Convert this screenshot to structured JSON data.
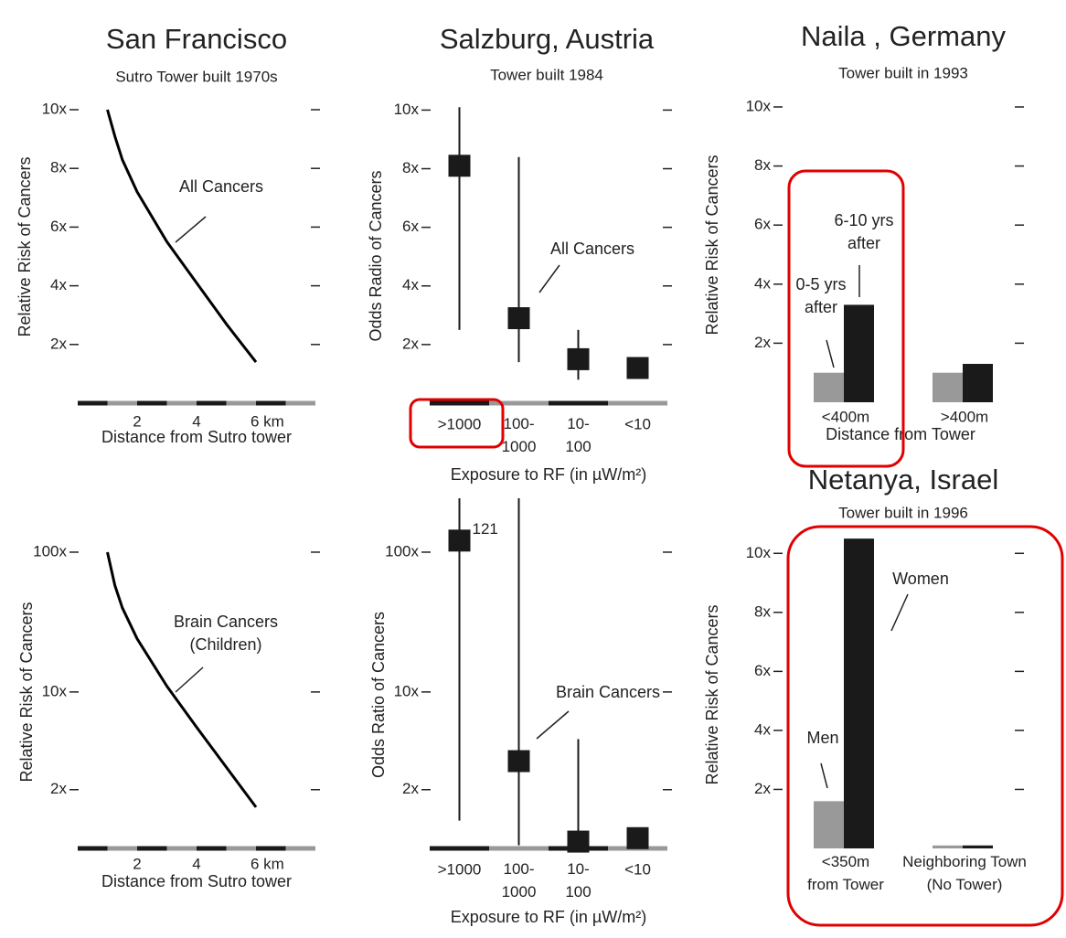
{
  "chart_data": [
    {
      "type": "line",
      "title": "San Francisco",
      "subtitle": "Sutro Tower built 1970s",
      "xlabel": "Distance from Sutro tower",
      "ylabel": "Relative Risk of Cancers",
      "x": [
        1,
        1.25,
        1.5,
        2,
        3,
        4,
        5,
        6
      ],
      "values": [
        10,
        9.1,
        8.3,
        7.2,
        5.5,
        4.1,
        2.7,
        1.4
      ],
      "color": "#000000",
      "xlim": [
        0,
        8
      ],
      "xticks": [
        2,
        4,
        {
          "value": 6,
          "label": "6 km"
        }
      ],
      "ylim": [
        0,
        10
      ],
      "yticks": [
        {
          "value": 10,
          "label": "10x"
        },
        {
          "value": 8,
          "label": "8x"
        },
        {
          "value": 6,
          "label": "6x"
        },
        {
          "value": 4,
          "label": "4x"
        },
        {
          "value": 2,
          "label": "2x"
        }
      ],
      "annotations": [
        "All Cancers"
      ]
    },
    {
      "type": "errorbar",
      "title": "Salzburg, Austria",
      "subtitle": "Tower built 1984",
      "xlabel": "Exposure to RF (in µW/m²)",
      "ylabel": "Odds Radio of Cancers",
      "categories": [
        ">1000",
        "100-\n1000",
        "10-\n100",
        "<10"
      ],
      "values": [
        8.1,
        2.9,
        1.5,
        1.2
      ],
      "lower": [
        2.5,
        1.4,
        0.8,
        null
      ],
      "upper": [
        10.1,
        8.4,
        2.5,
        null
      ],
      "color": "#1a1a1a",
      "ylim": [
        0,
        10.2
      ],
      "yticks": [
        {
          "value": 10,
          "label": "10x"
        },
        {
          "value": 8,
          "label": "8x"
        },
        {
          "value": 6,
          "label": "6x"
        },
        {
          "value": 4,
          "label": "4x"
        },
        {
          "value": 2,
          "label": "2x"
        }
      ],
      "annotations": [
        "All Cancers"
      ]
    },
    {
      "type": "bar",
      "title": "Naila , Germany",
      "subtitle": "Tower built in 1993",
      "xlabel": "Distance from Tower",
      "ylabel": "Relative Risk of Cancers",
      "categories": [
        "<400m",
        ">400m"
      ],
      "series": [
        {
          "name": "0-5 yrs\nafter",
          "color": "#999999",
          "values": [
            1.0,
            1.0
          ]
        },
        {
          "name": "6-10 yrs\nafter",
          "color": "#1a1a1a",
          "values": [
            3.3,
            1.3
          ]
        }
      ],
      "ylim": [
        0,
        10
      ],
      "yticks": [
        {
          "value": 10,
          "label": "10x"
        },
        {
          "value": 8,
          "label": "8x"
        },
        {
          "value": 6,
          "label": "6x"
        },
        {
          "value": 4,
          "label": "4x"
        },
        {
          "value": 2,
          "label": "2x"
        }
      ]
    },
    {
      "type": "line",
      "xlabel": "Distance from Sutro tower",
      "ylabel": "Relative Risk of Cancers",
      "yscale": "log",
      "x": [
        1,
        1.25,
        1.5,
        2,
        3,
        4,
        5,
        6
      ],
      "values": [
        100,
        58,
        40,
        24,
        11,
        5.6,
        2.9,
        1.5
      ],
      "color": "#000000",
      "xlim": [
        0,
        8
      ],
      "xticks": [
        2,
        4,
        {
          "value": 6,
          "label": "6 km"
        }
      ],
      "ylim": [
        0.76,
        243
      ],
      "yticks": [
        {
          "value": 100,
          "label": "100x"
        },
        {
          "value": 10,
          "label": "10x"
        },
        {
          "value": 2,
          "label": "2x"
        }
      ],
      "annotations": [
        "Brain Cancers\n(Children)"
      ]
    },
    {
      "type": "errorbar",
      "xlabel": "Exposure to RF (in µW/m²)",
      "ylabel": "Odds Ratio of Cancers",
      "yscale": "log",
      "categories": [
        ">1000",
        "100-\n1000",
        "10-\n100",
        "<10"
      ],
      "values": [
        121,
        3.2,
        0.85,
        0.9
      ],
      "value_labels": [
        "121",
        null,
        null,
        null
      ],
      "lower": [
        1.2,
        0.8,
        0.76,
        null
      ],
      "upper": [
        243,
        243,
        4.6,
        null
      ],
      "color": "#1a1a1a",
      "ylim": [
        0.76,
        243
      ],
      "yticks": [
        {
          "value": 100,
          "label": "100x"
        },
        {
          "value": 10,
          "label": "10x"
        },
        {
          "value": 2,
          "label": "2x"
        }
      ],
      "annotations": [
        "Brain Cancers"
      ]
    },
    {
      "type": "bar",
      "title": "Netanya, Israel",
      "subtitle": "Tower built in 1996",
      "ylabel": "Relative Risk of Cancers",
      "categories": [
        "<350m\nfrom Tower",
        "Neighboring Town\n(No Tower)"
      ],
      "series": [
        {
          "name": "Men",
          "color": "#999999",
          "values": [
            1.6,
            0.1
          ]
        },
        {
          "name": "Women",
          "color": "#1a1a1a",
          "values": [
            10.5,
            0.1
          ]
        }
      ],
      "ylim": [
        0,
        11
      ],
      "yticks": [
        {
          "value": 10,
          "label": "10x"
        },
        {
          "value": 8,
          "label": "8x"
        },
        {
          "value": 6,
          "label": "6x"
        },
        {
          "value": 4,
          "label": "4x"
        },
        {
          "value": 2,
          "label": "2x"
        }
      ]
    }
  ]
}
